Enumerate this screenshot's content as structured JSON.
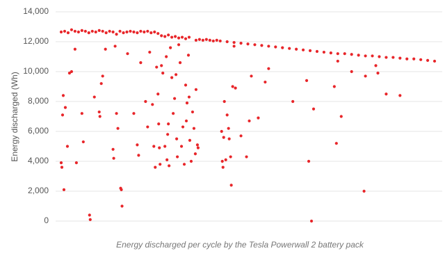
{
  "chart_data": {
    "type": "scatter",
    "ylabel": "Energy discharged (Wh)",
    "caption": "Energy discharged per cycle by the Tesla Powerwall 2 battery pack",
    "color": "#e8262a",
    "grid": true,
    "xlim": [
      0,
      545
    ],
    "ylim": [
      0,
      14000
    ],
    "yticks": [
      0,
      {
        "value": 2000,
        "label": "2,000"
      },
      {
        "value": 4000,
        "label": "4,000"
      },
      {
        "value": 6000,
        "label": "6,000"
      },
      {
        "value": 8000,
        "label": "8,000"
      },
      {
        "value": 10000,
        "label": "10,000"
      },
      {
        "value": 12000,
        "label": "12,000"
      },
      {
        "value": 14000,
        "label": "14,000"
      }
    ],
    "x": [
      0,
      5,
      10,
      15,
      20,
      25,
      30,
      35,
      40,
      45,
      50,
      55,
      60,
      65,
      70,
      75,
      80,
      85,
      90,
      95,
      100,
      105,
      110,
      115,
      120,
      125,
      130,
      135,
      140,
      145,
      150,
      155,
      160,
      165,
      170,
      175,
      180,
      185,
      195,
      200,
      205,
      210,
      215,
      220,
      225,
      230,
      240,
      250,
      260,
      270,
      280,
      290,
      300,
      310,
      320,
      330,
      340,
      350,
      360,
      370,
      380,
      390,
      400,
      410,
      420,
      430,
      440,
      450,
      460,
      470,
      480,
      490,
      500,
      510,
      520,
      530,
      540,
      0,
      1,
      2,
      3,
      4,
      6,
      9,
      12,
      15,
      20,
      22,
      30,
      32,
      41,
      42,
      48,
      55,
      56,
      58,
      60,
      64,
      75,
      76,
      78,
      80,
      82,
      86,
      87,
      88,
      96,
      105,
      110,
      112,
      115,
      122,
      125,
      128,
      132,
      134,
      136,
      138,
      140,
      141,
      142,
      143,
      145,
      147,
      150,
      152,
      153,
      154,
      155,
      156,
      158,
      160,
      162,
      164,
      166,
      167,
      168,
      170,
      172,
      174,
      176,
      178,
      180,
      181,
      182,
      184,
      185,
      186,
      188,
      190,
      192,
      194,
      195,
      197,
      198,
      232,
      233,
      234,
      235,
      236,
      238,
      240,
      242,
      243,
      245,
      246,
      248,
      250,
      252,
      260,
      268,
      272,
      275,
      285,
      295,
      300,
      335,
      355,
      358,
      362,
      365,
      395,
      398,
      400,
      405,
      420,
      438,
      440,
      455,
      458,
      470,
      490
    ],
    "values": [
      12650,
      12700,
      12600,
      12800,
      12700,
      12650,
      12750,
      12700,
      12600,
      12700,
      12650,
      12750,
      12700,
      12600,
      12700,
      12650,
      12500,
      12700,
      12600,
      12650,
      12700,
      12650,
      12600,
      12700,
      12650,
      12700,
      12600,
      12650,
      12550,
      12400,
      12350,
      12450,
      12300,
      12350,
      12250,
      12300,
      12200,
      12300,
      12100,
      12150,
      12100,
      12150,
      12100,
      12050,
      12100,
      12050,
      12000,
      11950,
      11900,
      11850,
      11800,
      11750,
      11700,
      11650,
      11600,
      11550,
      11500,
      11450,
      11400,
      11350,
      11300,
      11250,
      11200,
      11200,
      11150,
      11100,
      11050,
      11050,
      11000,
      10950,
      10950,
      10900,
      10850,
      10850,
      10800,
      10750,
      10700,
      3900,
      3600,
      7100,
      8400,
      2100,
      7600,
      5000,
      9900,
      10000,
      11500,
      3900,
      7200,
      5300,
      400,
      100,
      8300,
      7300,
      7000,
      9200,
      9700,
      11500,
      4800,
      4200,
      11700,
      7200,
      6200,
      2200,
      2100,
      1000,
      11200,
      7200,
      5100,
      4400,
      10600,
      8000,
      6300,
      11300,
      7800,
      5000,
      3600,
      10300,
      8500,
      6500,
      4900,
      3800,
      10400,
      9900,
      5000,
      11000,
      4100,
      5800,
      6500,
      3700,
      11600,
      9600,
      7200,
      8200,
      9800,
      5500,
      4300,
      11800,
      10600,
      5000,
      6300,
      3800,
      9100,
      6700,
      7900,
      11100,
      8300,
      5400,
      4000,
      7300,
      6200,
      4500,
      8800,
      5100,
      4900,
      6000,
      4000,
      3600,
      5600,
      8000,
      4100,
      7100,
      6200,
      5500,
      4300,
      2400,
      9000,
      11700,
      8900,
      5700,
      4300,
      6700,
      9700,
      6900,
      9300,
      10200,
      8000,
      9400,
      4000,
      0,
      7500,
      9000,
      5200,
      10700,
      7000,
      10000,
      2000,
      9700,
      10400,
      9900,
      8500,
      8400
    ]
  }
}
